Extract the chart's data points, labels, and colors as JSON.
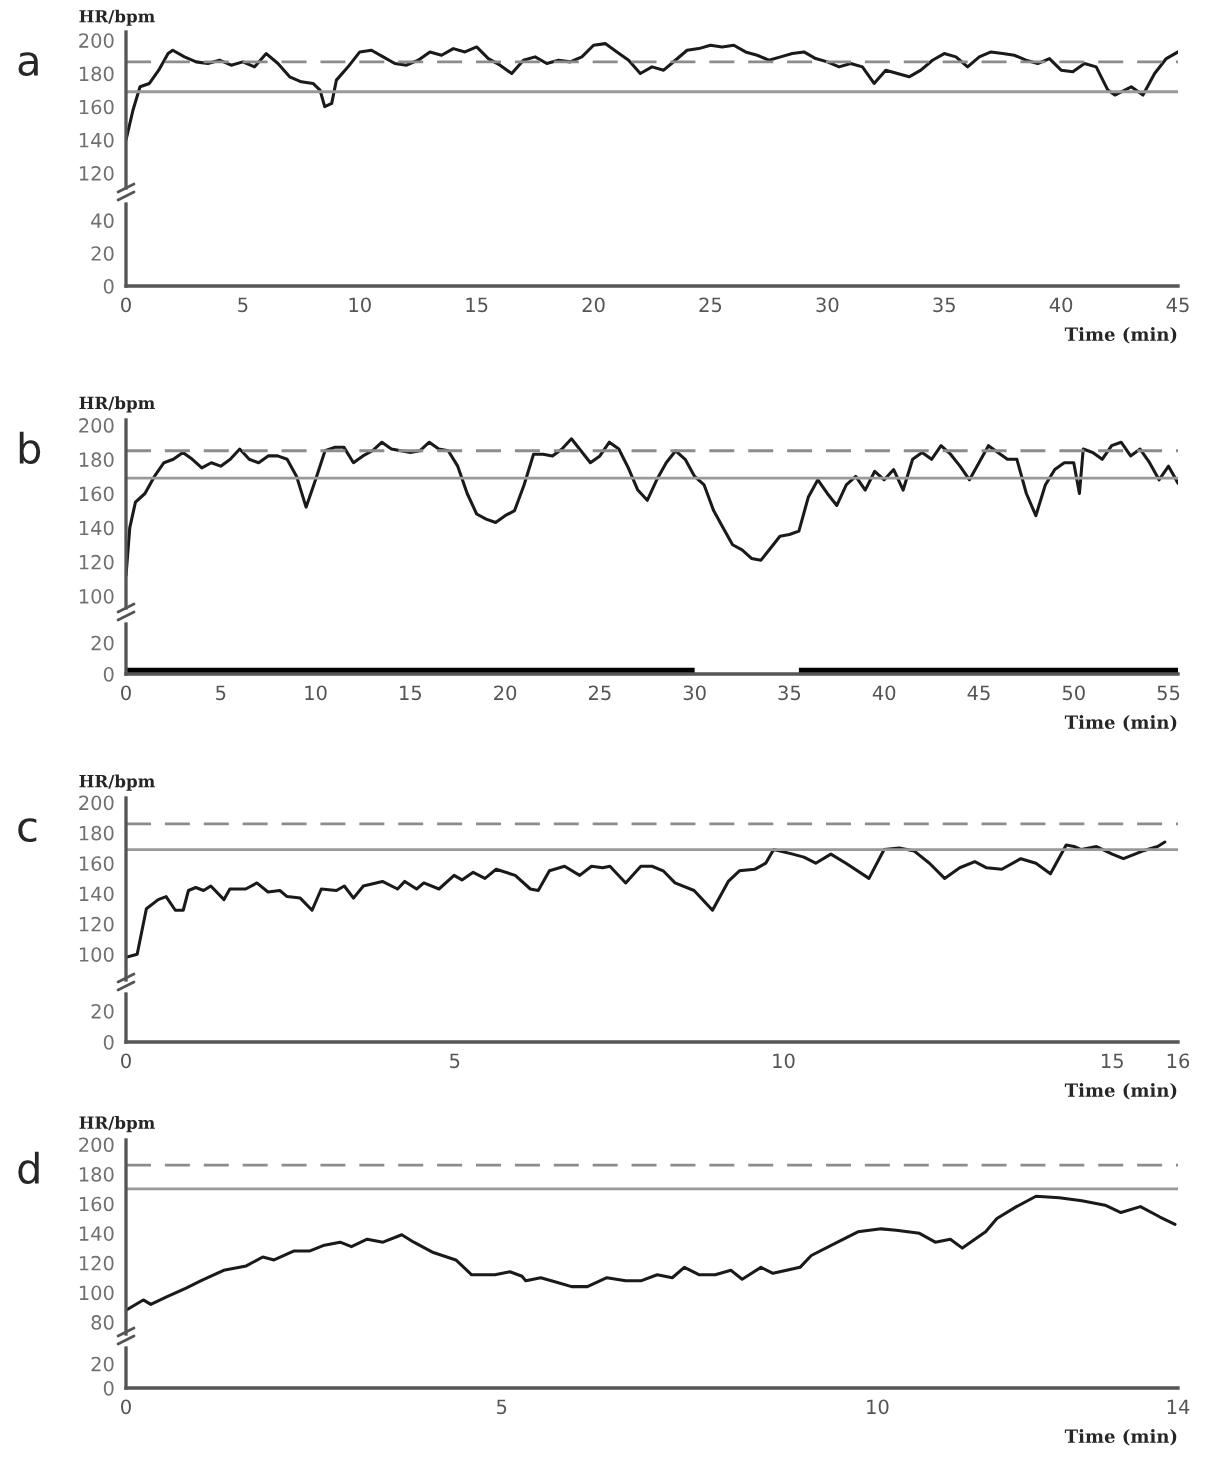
{
  "chart_data": [
    {
      "type": "line",
      "title": "a",
      "ylabel": "HR/bpm",
      "xlim": [
        0,
        45
      ],
      "ylim": [
        111,
        205
      ],
      "yticks": [
        120,
        140,
        160,
        180,
        200
      ],
      "tick_labels": "y",
      "series": [
        {
          "color": "#1a1a1a",
          "x": [
            0,
            0.3,
            0.6,
            1,
            1.4,
            1.8,
            2,
            2.5,
            3,
            3.5,
            4,
            4.5,
            5,
            5.5,
            6,
            6.5,
            7,
            7.5,
            8,
            8.3,
            8.5,
            8.8,
            9,
            9.5,
            10,
            10.5,
            11,
            11.5,
            12,
            12.5,
            13,
            13.5,
            14,
            14.5,
            15,
            15.5,
            16,
            16.5,
            17,
            17.5,
            18,
            18.5,
            19,
            19.5,
            20,
            20.5,
            21,
            21.5,
            22,
            22.5,
            23,
            23.5,
            24,
            24.5,
            25,
            25.5,
            26,
            26.5,
            27,
            27.5,
            28,
            28.5,
            29,
            29.5,
            30,
            30.5,
            31,
            31.5,
            32,
            32.5,
            33,
            33.5,
            34,
            34.5,
            35,
            35.5,
            36,
            36.5,
            37,
            37.5,
            38,
            38.5,
            39,
            39.5,
            40,
            40.5,
            41,
            41.5,
            42,
            42.3,
            43,
            43.5,
            44,
            44.5,
            45
          ],
          "values": [
            140,
            158,
            172,
            174,
            182,
            192,
            194,
            190,
            187,
            186,
            188,
            185,
            187,
            184,
            192,
            186,
            178,
            175,
            174,
            170,
            160,
            162,
            176,
            184,
            193,
            194,
            190,
            186,
            185,
            188,
            193,
            191,
            195,
            193,
            196,
            189,
            185,
            180,
            188,
            190,
            186,
            188,
            187,
            190,
            197,
            198,
            193,
            188,
            180,
            184,
            182,
            188,
            194,
            195,
            197,
            196,
            197,
            193,
            191,
            188,
            190,
            192,
            193,
            189,
            187,
            184,
            186,
            184,
            174,
            182,
            180,
            178,
            182,
            188,
            192,
            190,
            184,
            190,
            193,
            192,
            191,
            188,
            186,
            189,
            182,
            181,
            186,
            184,
            170,
            167,
            172,
            167,
            180,
            189,
            193
          ]
        }
      ],
      "ref_lines": [
        {
          "axis": "y",
          "value": 187,
          "color": "#8c8c8c",
          "line_style": "dashed"
        },
        {
          "axis": "y",
          "value": 169,
          "color": "#999999",
          "line_style": "solid"
        }
      ]
    },
    {
      "type": "line",
      "xlabel": "Time (min)",
      "xlim": [
        0,
        45
      ],
      "xticks": [
        0,
        5,
        10,
        15,
        20,
        25,
        30,
        35,
        40,
        45
      ],
      "ylim": [
        0,
        50
      ],
      "yticks": [
        0,
        20,
        40
      ]
    },
    {
      "type": "line",
      "title": "b",
      "ylabel": "HR/bpm",
      "xlim": [
        0,
        55.5
      ],
      "ylim": [
        93,
        203
      ],
      "yticks": [
        100,
        120,
        140,
        160,
        180,
        200
      ],
      "tick_labels": "y",
      "series": [
        {
          "color": "#1a1a1a",
          "x": [
            0,
            0.2,
            0.5,
            1,
            1.5,
            2,
            2.5,
            3,
            3.5,
            4,
            4.5,
            5,
            5.5,
            6,
            6.5,
            7,
            7.5,
            8,
            8.5,
            9,
            9.5,
            10,
            10.5,
            11,
            11.5,
            12,
            12.5,
            13,
            13.5,
            14,
            15,
            15.5,
            16,
            16.5,
            17,
            17.5,
            18,
            18.5,
            19,
            19.5,
            20,
            20.5,
            21,
            21.5,
            22,
            22.5,
            23,
            23.5,
            24,
            24.5,
            25,
            25.5,
            26,
            26.5,
            27,
            27.5,
            28,
            28.5,
            29,
            29.5,
            30,
            30.5,
            31,
            31.5,
            32,
            32.5,
            33,
            33.5,
            34,
            34.5,
            35,
            35.5,
            36,
            36.5,
            37,
            37.5,
            38,
            38.5,
            39,
            39.5,
            40,
            40.5,
            41,
            41.5,
            42,
            42.5,
            43,
            43.5,
            44,
            44.5,
            45,
            45.5,
            46,
            46.5,
            47,
            47.5,
            48,
            48.5,
            49,
            49.5,
            50,
            50.3,
            50.5,
            51,
            51.5,
            52,
            52.5,
            53,
            53.5,
            54,
            54.5,
            55,
            55.5
          ],
          "values": [
            112,
            140,
            155,
            160,
            170,
            178,
            180,
            184,
            180,
            175,
            178,
            176,
            180,
            186,
            180,
            178,
            182,
            182,
            180,
            170,
            152,
            168,
            185,
            187,
            187,
            178,
            182,
            185,
            190,
            186,
            184,
            185,
            190,
            186,
            185,
            176,
            160,
            148,
            145,
            143,
            147,
            150,
            165,
            183,
            183,
            182,
            186,
            192,
            185,
            178,
            182,
            190,
            186,
            175,
            162,
            156,
            168,
            178,
            185,
            180,
            170,
            165,
            150,
            140,
            130,
            127,
            122,
            121,
            128,
            135,
            136,
            138,
            158,
            168,
            160,
            153,
            165,
            170,
            162,
            173,
            168,
            174,
            162,
            180,
            184,
            180,
            188,
            183,
            176,
            168,
            178,
            188,
            184,
            180,
            180,
            160,
            147,
            165,
            174,
            178,
            178,
            160,
            186,
            184,
            180,
            188,
            190,
            182,
            186,
            178,
            168,
            176,
            166
          ]
        }
      ],
      "ref_lines": [
        {
          "axis": "y",
          "value": 185,
          "color": "#8c8c8c",
          "line_style": "dashed"
        },
        {
          "axis": "y",
          "value": 169,
          "color": "#999999",
          "line_style": "solid"
        }
      ]
    },
    {
      "type": "line",
      "xlabel": "Time (min)",
      "xlim": [
        0,
        55.5
      ],
      "xticks": [
        0,
        5,
        10,
        15,
        20,
        25,
        30,
        35,
        40,
        45,
        50,
        55
      ],
      "ylim": [
        0,
        32
      ],
      "yticks": [
        0,
        20
      ],
      "series": [
        {
          "type": "area",
          "color": "#000000",
          "x": [
            0,
            30,
            32,
            35.5,
            55.5
          ],
          "values": [
            4,
            4,
            null,
            4,
            4
          ]
        }
      ]
    },
    {
      "type": "line",
      "title": "c",
      "ylabel": "HR/bpm",
      "xlim": [
        0,
        16
      ],
      "ylim": [
        83,
        203
      ],
      "yticks": [
        100,
        120,
        140,
        160,
        180,
        200
      ],
      "tick_labels": "y",
      "series": [
        {
          "color": "#1a1a1a",
          "x": [
            0,
            0.17,
            0.31,
            0.49,
            0.61,
            0.75,
            0.87,
            0.95,
            1.06,
            1.18,
            1.29,
            1.49,
            1.58,
            1.82,
            1.99,
            2.16,
            2.34,
            2.45,
            2.65,
            2.83,
            2.97,
            3.2,
            3.32,
            3.46,
            3.61,
            3.9,
            4.13,
            4.24,
            4.42,
            4.53,
            4.76,
            4.99,
            5.11,
            5.28,
            5.46,
            5.63,
            5.92,
            6.15,
            6.27,
            6.44,
            6.67,
            6.9,
            7.08,
            7.25,
            7.36,
            7.6,
            7.83,
            8.0,
            8.17,
            8.35,
            8.64,
            8.92,
            9.16,
            9.33,
            9.56,
            9.73,
            9.85,
            10.14,
            10.31,
            10.49,
            10.72,
            10.95,
            11.3,
            11.53,
            11.76,
            11.99,
            12.22,
            12.45,
            12.68,
            12.91,
            13.09,
            13.32,
            13.61,
            13.84,
            14.06,
            14.3,
            14.42,
            14.53,
            14.76,
            15.0,
            15.17,
            15.46,
            15.69,
            15.8
          ],
          "values": [
            98,
            100,
            130,
            136,
            138,
            129,
            129,
            142,
            144,
            142,
            145,
            136,
            143,
            143,
            147,
            141,
            142,
            138,
            137,
            129,
            143,
            142,
            145,
            137,
            145,
            148,
            143,
            148,
            143,
            147,
            143,
            152,
            149,
            154,
            150,
            156,
            152,
            143,
            142,
            155,
            158,
            152,
            158,
            157,
            158,
            147,
            158,
            158,
            155,
            147,
            142,
            129,
            148,
            155,
            156,
            160,
            169,
            166,
            164,
            160,
            166,
            160,
            150,
            169,
            170,
            168,
            160,
            150,
            157,
            161,
            157,
            156,
            163,
            160,
            153,
            172,
            171,
            169,
            171,
            166,
            163,
            168,
            171,
            174
          ]
        }
      ],
      "ref_lines": [
        {
          "axis": "y",
          "value": 186,
          "color": "#8c8c8c",
          "line_style": "dashed"
        },
        {
          "axis": "y",
          "value": 169,
          "color": "#999999",
          "line_style": "solid"
        }
      ]
    },
    {
      "type": "line",
      "xlabel": "Time (min)",
      "xlim": [
        0,
        16
      ],
      "xticks": [
        0,
        5,
        10,
        15,
        16
      ],
      "ylim": [
        0,
        31
      ],
      "yticks": [
        0,
        20
      ]
    },
    {
      "type": "line",
      "title": "d",
      "ylabel": "HR/bpm",
      "xlim": [
        0,
        14
      ],
      "ylim": [
        72,
        203
      ],
      "yticks": [
        80,
        100,
        120,
        140,
        160,
        180,
        200
      ],
      "tick_labels": "y",
      "series": [
        {
          "color": "#1a1a1a",
          "x": [
            0,
            0.23,
            0.33,
            0.54,
            0.8,
            1.0,
            1.3,
            1.6,
            1.82,
            1.97,
            2.23,
            2.44,
            2.64,
            2.85,
            3.0,
            3.21,
            3.42,
            3.67,
            3.83,
            4.09,
            4.39,
            4.6,
            4.91,
            5.11,
            5.27,
            5.32,
            5.52,
            5.73,
            5.93,
            6.14,
            6.4,
            6.65,
            6.86,
            7.07,
            7.27,
            7.43,
            7.63,
            7.84,
            8.05,
            8.2,
            8.45,
            8.61,
            8.97,
            9.12,
            9.43,
            9.74,
            10.05,
            10.25,
            10.56,
            10.77,
            10.97,
            11.13,
            11.44,
            11.59,
            11.85,
            12.11,
            12.42,
            12.72,
            13.03,
            13.24,
            13.5,
            13.76,
            13.96
          ],
          "values": [
            88,
            95,
            92,
            97,
            103,
            108,
            115,
            118,
            124,
            122,
            128,
            128,
            132,
            134,
            131,
            136,
            134,
            139,
            134,
            127,
            122,
            112,
            112,
            114,
            111,
            108,
            110,
            107,
            104,
            104,
            110,
            108,
            108,
            112,
            110,
            117,
            112,
            112,
            115,
            109,
            117,
            113,
            117,
            125,
            133,
            141,
            143,
            142,
            140,
            134,
            136,
            130,
            141,
            150,
            158,
            165,
            164,
            162,
            159,
            154,
            158,
            151,
            146
          ]
        }
      ],
      "ref_lines": [
        {
          "axis": "y",
          "value": 186,
          "color": "#8c8c8c",
          "line_style": "dashed"
        },
        {
          "axis": "y",
          "value": 170,
          "color": "#999999",
          "line_style": "solid"
        }
      ]
    },
    {
      "type": "line",
      "xlabel": "Time (min)",
      "xlim": [
        0,
        14
      ],
      "xticks": [
        0,
        5,
        10,
        14
      ],
      "ylim": [
        0,
        33
      ],
      "yticks": [
        0,
        20
      ]
    }
  ]
}
